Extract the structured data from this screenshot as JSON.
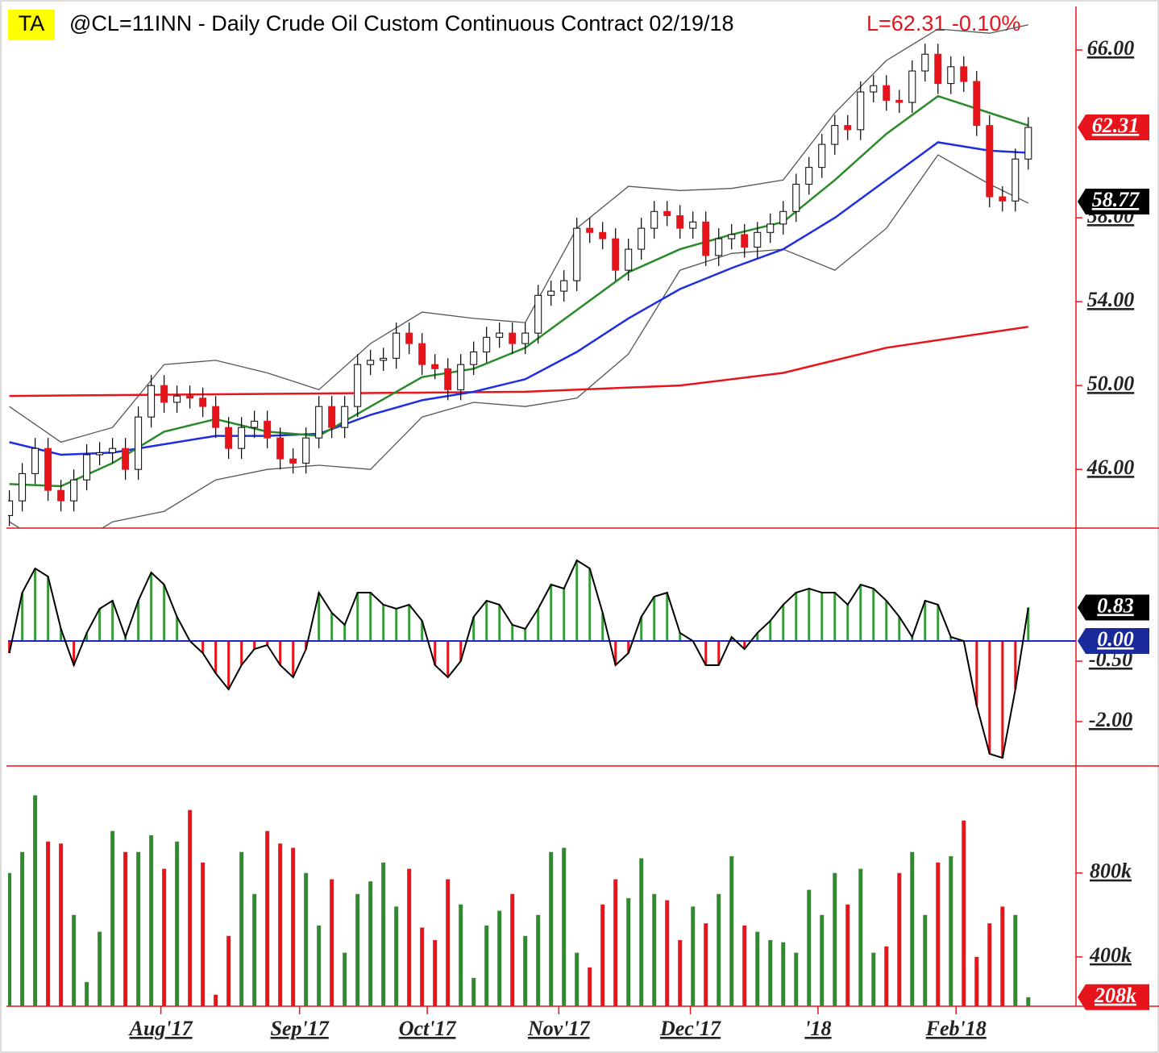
{
  "header": {
    "badge": "TA",
    "title": "@CL=11INN - Daily  Crude Oil Custom Continuous Contract  02/19/18",
    "last": "L=62.31  -0.10%"
  },
  "chart_data": [
    {
      "type": "candlestick",
      "xlim": [
        -0.1,
        82.7
      ],
      "ylim": [
        43.2,
        68
      ],
      "yticks": [
        {
          "value": 46,
          "label": "46.00"
        },
        {
          "value": 50,
          "label": "50.00"
        },
        {
          "value": 54,
          "label": "54.00"
        },
        {
          "value": 58,
          "label": "58.00"
        },
        {
          "value": 66,
          "label": "66.00"
        }
      ],
      "open": [
        43.8,
        44.5,
        45.8,
        47.0,
        45.0,
        44.5,
        45.5,
        46.7,
        46.8,
        47.0,
        46.0,
        48.5,
        50.0,
        49.2,
        49.5,
        49.4,
        49.0,
        48.0,
        47.0,
        48.0,
        48.3,
        47.5,
        46.5,
        46.3,
        47.5,
        49.0,
        48.0,
        49.0,
        51.0,
        51.2,
        51.3,
        52.5,
        52.0,
        51.0,
        50.8,
        49.8,
        51.0,
        51.6,
        52.3,
        52.5,
        52.0,
        52.5,
        54.3,
        54.5,
        55.0,
        57.5,
        57.3,
        57.0,
        55.5,
        56.5,
        57.5,
        58.3,
        58.1,
        57.5,
        57.8,
        56.2,
        57.0,
        57.2,
        56.6,
        57.3,
        57.7,
        58.3,
        59.6,
        60.4,
        61.5,
        62.4,
        62.2,
        64.0,
        64.3,
        63.6,
        63.5,
        65.0,
        65.8,
        64.4,
        65.2,
        64.5,
        62.4,
        59.0,
        58.8,
        60.8
      ],
      "high": [
        45.0,
        46.3,
        47.5,
        47.5,
        45.5,
        46.0,
        47.2,
        47.3,
        47.5,
        47.5,
        49.0,
        50.5,
        50.5,
        50.0,
        50.0,
        49.9,
        49.5,
        48.5,
        48.5,
        48.8,
        48.8,
        48.0,
        47.0,
        48.0,
        49.5,
        49.5,
        49.5,
        51.5,
        51.7,
        51.8,
        53.0,
        53.0,
        52.5,
        51.5,
        51.3,
        51.5,
        52.1,
        52.8,
        53.0,
        53.0,
        53.0,
        54.8,
        55.0,
        55.5,
        58.0,
        58.0,
        57.8,
        57.5,
        57.0,
        58.0,
        58.8,
        58.8,
        58.6,
        58.3,
        58.3,
        57.5,
        57.7,
        57.7,
        57.8,
        58.2,
        58.8,
        60.1,
        60.9,
        62.0,
        62.9,
        62.9,
        64.5,
        64.8,
        64.8,
        64.1,
        65.5,
        66.3,
        66.3,
        65.7,
        65.7,
        65.0,
        62.9,
        59.5,
        61.3,
        62.8
      ],
      "low": [
        43.3,
        44.0,
        45.3,
        44.5,
        44.0,
        44.0,
        45.0,
        46.2,
        46.3,
        45.5,
        45.5,
        48.0,
        48.7,
        48.7,
        48.9,
        48.5,
        47.5,
        46.5,
        46.5,
        47.5,
        47.0,
        46.0,
        45.8,
        45.8,
        47.0,
        47.5,
        47.5,
        48.5,
        50.5,
        50.7,
        50.8,
        51.5,
        50.5,
        50.3,
        49.3,
        49.3,
        50.5,
        51.1,
        51.8,
        51.5,
        51.5,
        52.0,
        53.8,
        54.0,
        54.5,
        56.8,
        56.5,
        55.0,
        55.0,
        56.0,
        57.0,
        57.6,
        57.0,
        57.0,
        55.7,
        55.7,
        56.5,
        56.1,
        56.1,
        56.8,
        57.2,
        57.8,
        59.1,
        59.9,
        61.0,
        61.7,
        61.7,
        63.5,
        63.1,
        63.0,
        63.0,
        64.5,
        63.9,
        63.9,
        64.0,
        61.9,
        58.5,
        58.3,
        58.3,
        60.3
      ],
      "close": [
        44.5,
        45.8,
        47.0,
        45.0,
        44.5,
        45.5,
        46.7,
        46.8,
        47.0,
        46.0,
        48.5,
        50.0,
        49.2,
        49.5,
        49.4,
        49.0,
        48.0,
        47.0,
        48.0,
        48.3,
        47.5,
        46.5,
        46.3,
        47.5,
        49.0,
        48.0,
        49.0,
        51.0,
        51.2,
        51.3,
        52.5,
        52.0,
        51.0,
        50.8,
        49.8,
        51.0,
        51.6,
        52.3,
        52.5,
        52.0,
        52.5,
        54.3,
        54.5,
        55.0,
        57.5,
        57.3,
        57.0,
        55.5,
        56.5,
        57.5,
        58.3,
        58.1,
        57.5,
        57.8,
        56.2,
        57.0,
        57.2,
        56.6,
        57.3,
        57.7,
        58.3,
        59.6,
        60.4,
        61.5,
        62.4,
        62.2,
        64.0,
        64.3,
        63.6,
        63.5,
        65.0,
        65.8,
        64.4,
        65.2,
        64.5,
        62.4,
        59.0,
        58.8,
        60.8,
        62.31
      ],
      "up_color": "#ffffff",
      "down_color": "#e8141b",
      "lines": [
        {
          "color": "#555555",
          "x": [
            0,
            4,
            8,
            12,
            16,
            20,
            24,
            28,
            32,
            36,
            40,
            44,
            48,
            52,
            56,
            60,
            64,
            68,
            72,
            76,
            79
          ],
          "values": [
            49.0,
            47.3,
            48.0,
            51.0,
            51.2,
            50.6,
            49.8,
            52.0,
            53.5,
            53.2,
            53.0,
            57.5,
            59.5,
            59.3,
            59.4,
            59.8,
            63.0,
            65.5,
            67.0,
            66.8,
            67.2
          ]
        },
        {
          "color": "#555555",
          "x": [
            0,
            4,
            8,
            12,
            16,
            20,
            24,
            28,
            32,
            36,
            40,
            44,
            48,
            52,
            56,
            60,
            64,
            68,
            72,
            76,
            79
          ],
          "values": [
            43.5,
            42.0,
            43.5,
            44.0,
            45.5,
            46.0,
            46.2,
            46.0,
            48.5,
            49.2,
            49.0,
            49.4,
            51.5,
            55.5,
            56.3,
            56.5,
            55.5,
            57.5,
            61.0,
            59.6,
            58.7
          ]
        },
        {
          "color": "#e8141b",
          "x": [
            0,
            20,
            40,
            52,
            60,
            68,
            79
          ],
          "values": [
            49.5,
            49.6,
            49.7,
            50.0,
            50.6,
            51.8,
            52.8
          ]
        },
        {
          "color": "#1f2fe0",
          "x": [
            0,
            4,
            8,
            12,
            16,
            20,
            24,
            28,
            32,
            36,
            40,
            44,
            48,
            52,
            56,
            60,
            64,
            68,
            72,
            76,
            79
          ],
          "values": [
            47.3,
            46.7,
            46.8,
            47.2,
            47.6,
            47.6,
            47.7,
            48.6,
            49.3,
            49.7,
            50.3,
            51.6,
            53.2,
            54.6,
            55.6,
            56.5,
            58.0,
            59.8,
            61.6,
            61.2,
            61.1
          ]
        },
        {
          "color": "#2a8a2a",
          "x": [
            0,
            4,
            8,
            12,
            16,
            20,
            24,
            28,
            32,
            36,
            40,
            44,
            48,
            52,
            56,
            60,
            64,
            68,
            72,
            76,
            79
          ],
          "values": [
            45.3,
            45.2,
            46.3,
            47.8,
            48.4,
            47.8,
            47.6,
            49.0,
            50.4,
            50.8,
            51.8,
            53.6,
            55.4,
            56.5,
            57.2,
            57.8,
            59.8,
            62.0,
            63.8,
            63.0,
            62.4
          ]
        }
      ],
      "markers": [
        {
          "value": 62.31,
          "label": "62.31",
          "color": "#e8141b"
        },
        {
          "value": 58.77,
          "label": "58.77",
          "color": "#000000"
        }
      ]
    },
    {
      "type": "histogram",
      "xlim": [
        -0.1,
        82.7
      ],
      "ylim": [
        -3.1,
        2.8
      ],
      "yticks": [
        {
          "value": -2,
          "label": "-2.00"
        },
        {
          "value": -0.5,
          "label": "-0.50"
        }
      ],
      "values": [
        -0.3,
        1.2,
        1.8,
        1.6,
        0.3,
        -0.6,
        0.2,
        0.8,
        1.0,
        0.1,
        1.0,
        1.7,
        1.4,
        0.6,
        0.0,
        -0.3,
        -0.8,
        -1.2,
        -0.6,
        -0.2,
        -0.1,
        -0.6,
        -0.9,
        -0.2,
        1.2,
        0.7,
        0.4,
        1.2,
        1.2,
        0.9,
        0.8,
        0.9,
        0.5,
        -0.6,
        -0.9,
        -0.5,
        0.6,
        1.0,
        0.9,
        0.4,
        0.3,
        0.8,
        1.4,
        1.3,
        2.0,
        1.8,
        0.7,
        -0.6,
        -0.3,
        0.6,
        1.1,
        1.2,
        0.2,
        0.0,
        -0.6,
        -0.6,
        0.1,
        -0.2,
        0.2,
        0.5,
        0.9,
        1.2,
        1.3,
        1.2,
        1.2,
        0.9,
        1.4,
        1.3,
        1.0,
        0.6,
        0.1,
        1.0,
        0.9,
        0.1,
        0.0,
        -1.6,
        -2.8,
        -2.9,
        -1.2,
        0.83
      ],
      "up_color": "#3c9a3c",
      "down_color": "#e8141b",
      "zero_color": "#1a2ac0",
      "markers": [
        {
          "value": 0.83,
          "label": "0.83",
          "color": "#000000"
        },
        {
          "value": 0,
          "label": "0.00",
          "color": "#1a2a9a"
        }
      ]
    },
    {
      "type": "bar",
      "xlim": [
        -0.1,
        82.7
      ],
      "ylim": [
        165000,
        1310000
      ],
      "yticks": [
        {
          "value": 400000,
          "label": "400k"
        },
        {
          "value": 800000,
          "label": "800k"
        }
      ],
      "values": [
        800000,
        900000,
        1170000,
        950000,
        940000,
        600000,
        280000,
        520000,
        1000000,
        900000,
        900000,
        980000,
        820000,
        950000,
        1100000,
        850000,
        220000,
        500000,
        900000,
        700000,
        1000000,
        940000,
        920000,
        800000,
        550000,
        770000,
        420000,
        700000,
        760000,
        850000,
        640000,
        820000,
        540000,
        480000,
        770000,
        650000,
        300000,
        550000,
        620000,
        700000,
        500000,
        600000,
        900000,
        920000,
        420000,
        350000,
        650000,
        770000,
        680000,
        870000,
        700000,
        670000,
        480000,
        640000,
        560000,
        700000,
        880000,
        550000,
        520000,
        480000,
        470000,
        420000,
        720000,
        600000,
        800000,
        650000,
        820000,
        420000,
        450000,
        800000,
        900000,
        600000,
        850000,
        880000,
        1050000,
        400000,
        560000,
        640000,
        600000,
        208000
      ],
      "up_color": "#2e8b2e",
      "down_color": "#e8141b",
      "markers": [
        {
          "value": 208000,
          "label": "208k",
          "color": "#e8141b"
        }
      ],
      "xticks": [
        {
          "value": 11.75,
          "label": "Aug'17"
        },
        {
          "value": 22.5,
          "label": "Sep'17"
        },
        {
          "value": 32.4,
          "label": "Oct'17"
        },
        {
          "value": 42.6,
          "label": "Nov'17"
        },
        {
          "value": 52.8,
          "label": "Dec'17"
        },
        {
          "value": 62.7,
          "label": "'18"
        },
        {
          "value": 73.4,
          "label": "Feb'18"
        }
      ]
    }
  ]
}
